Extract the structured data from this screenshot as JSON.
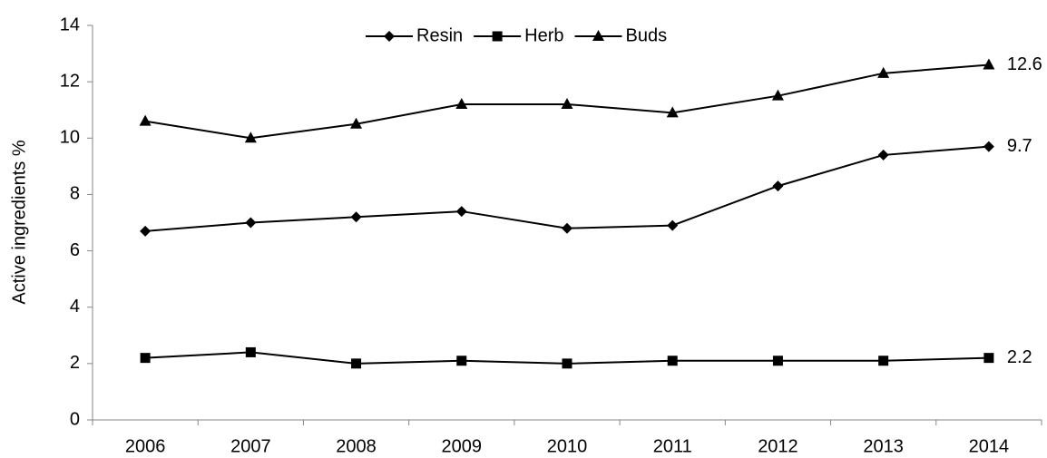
{
  "chart_data": {
    "type": "line",
    "ylabel": "Active ingredients %",
    "categories": [
      "2006",
      "2007",
      "2008",
      "2009",
      "2010",
      "2011",
      "2012",
      "2013",
      "2014"
    ],
    "series": [
      {
        "name": "Resin",
        "color": "#000000",
        "marker": "diamond",
        "values": [
          6.7,
          7.0,
          7.2,
          7.4,
          6.8,
          6.9,
          8.3,
          9.4,
          9.7
        ]
      },
      {
        "name": "Herb",
        "color": "#000000",
        "marker": "square",
        "values": [
          2.2,
          2.4,
          2.0,
          2.1,
          2.0,
          2.1,
          2.1,
          2.1,
          2.2
        ]
      },
      {
        "name": "Buds",
        "color": "#000000",
        "marker": "triangle",
        "values": [
          10.6,
          10.0,
          10.5,
          11.2,
          11.2,
          10.9,
          11.5,
          12.3,
          12.6
        ]
      }
    ],
    "ylim": [
      0,
      14
    ],
    "yticks": [
      0,
      2,
      4,
      6,
      8,
      10,
      12,
      14
    ],
    "grid": false,
    "legend": "top",
    "end_labels": true
  }
}
